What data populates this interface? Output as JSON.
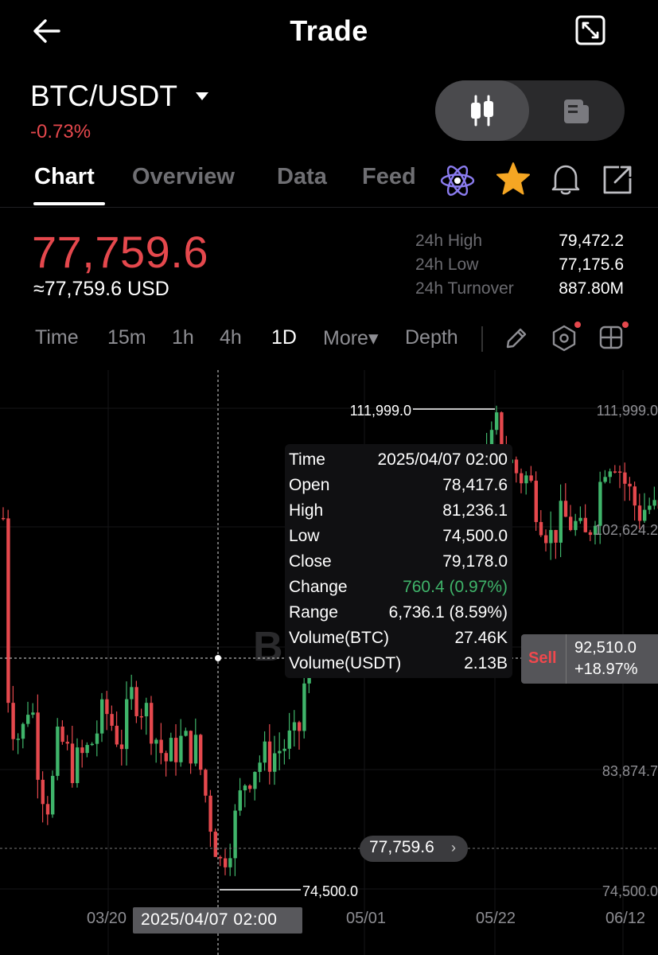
{
  "header": {
    "title": "Trade",
    "back_icon": "arrow-left-icon",
    "expand_icon": "expand-icon"
  },
  "market": {
    "pair": "BTC/USDT",
    "change_pct": "-0.73%",
    "price": "77,759.6",
    "price_usd": "≈77,759.6 USD",
    "stats": [
      {
        "label": "24h High",
        "value": "79,472.2"
      },
      {
        "label": "24h Low",
        "value": "77,175.6"
      },
      {
        "label": "24h Turnover",
        "value": "887.80M"
      }
    ]
  },
  "tabs": [
    {
      "label": "Chart",
      "active": true
    },
    {
      "label": "Overview",
      "active": false
    },
    {
      "label": "Data",
      "active": false
    },
    {
      "label": "Feed",
      "active": false
    }
  ],
  "intervals": {
    "items": [
      "Time",
      "15m",
      "1h",
      "4h",
      "1D",
      "More▾",
      "Depth"
    ],
    "active": "1D"
  },
  "chart": {
    "price_labels": {
      "max": "111,999.0",
      "right_max": "111,999.0",
      "right_mid": "102,624.2",
      "right_low": "83,874.7",
      "right_min": "74,500.0",
      "min": "74,500.0"
    },
    "x_labels": [
      "03/20",
      "05/01",
      "05/22",
      "06/12"
    ],
    "watermark": "B",
    "tooltip": {
      "rows": [
        {
          "k": "Time",
          "v": "2025/04/07 02:00"
        },
        {
          "k": "Open",
          "v": "78,417.6"
        },
        {
          "k": "High",
          "v": "81,236.1"
        },
        {
          "k": "Low",
          "v": "74,500.0"
        },
        {
          "k": "Close",
          "v": "79,178.0"
        },
        {
          "k": "Change",
          "v": "760.4 (0.97%)"
        },
        {
          "k": "Range",
          "v": "6,736.1 (8.59%)"
        },
        {
          "k": "Volume(BTC)",
          "v": "27.46K"
        },
        {
          "k": "Volume(USDT)",
          "v": "2.13B"
        }
      ]
    },
    "sell": {
      "label": "Sell",
      "price": "92,510.0",
      "pct": "+18.97%"
    },
    "current_price": "77,759.6",
    "crosshair_date": "2025/04/07 02:00"
  },
  "colors": {
    "up": "#3fb46a",
    "down": "#e5484d",
    "star": "#f5a623"
  }
}
